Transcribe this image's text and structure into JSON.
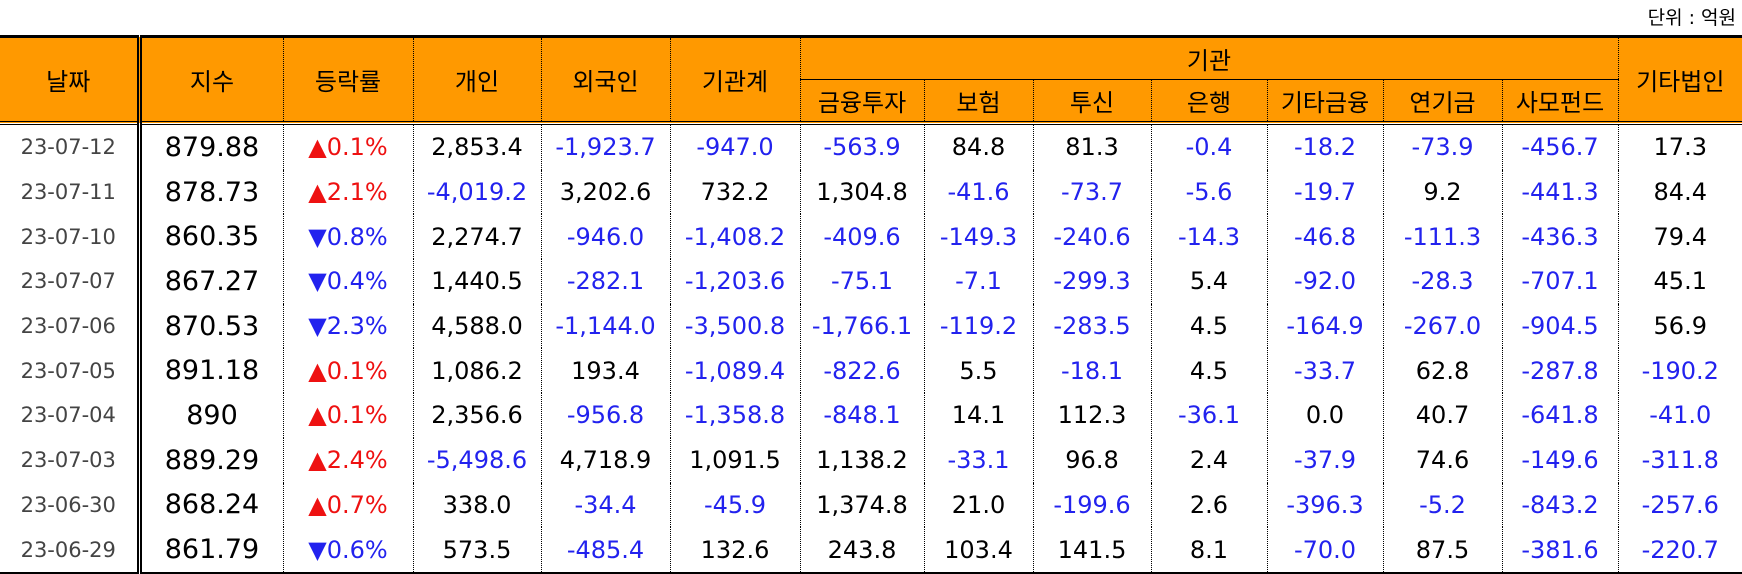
{
  "header": {
    "unit": "단위 : 억원",
    "columns": [
      "날짜",
      "지수",
      "등락률",
      "개인",
      "외국인",
      "기관계"
    ],
    "group": "기관",
    "subcolumns": [
      "금융투자",
      "보험",
      "투신",
      "은행",
      "기타금융",
      "연기금",
      "사모펀드"
    ],
    "last": "기타법인"
  },
  "table": {
    "rows": [
      [
        "23-07-12",
        "879.88",
        "▲0.1%",
        "2,853.4",
        "-1,923.7",
        "-947.0",
        "-563.9",
        "84.8",
        "81.3",
        "-0.4",
        "-18.2",
        "-73.9",
        "-456.7",
        "17.3"
      ],
      [
        "23-07-11",
        "878.73",
        "▲2.1%",
        "-4,019.2",
        "3,202.6",
        "732.2",
        "1,304.8",
        "-41.6",
        "-73.7",
        "-5.6",
        "-19.7",
        "9.2",
        "-441.3",
        "84.4"
      ],
      [
        "23-07-10",
        "860.35",
        "▼0.8%",
        "2,274.7",
        "-946.0",
        "-1,408.2",
        "-409.6",
        "-149.3",
        "-240.6",
        "-14.3",
        "-46.8",
        "-111.3",
        "-436.3",
        "79.4"
      ],
      [
        "23-07-07",
        "867.27",
        "▼0.4%",
        "1,440.5",
        "-282.1",
        "-1,203.6",
        "-75.1",
        "-7.1",
        "-299.3",
        "5.4",
        "-92.0",
        "-28.3",
        "-707.1",
        "45.1"
      ],
      [
        "23-07-06",
        "870.53",
        "▼2.3%",
        "4,588.0",
        "-1,144.0",
        "-3,500.8",
        "-1,766.1",
        "-119.2",
        "-283.5",
        "4.5",
        "-164.9",
        "-267.0",
        "-904.5",
        "56.9"
      ],
      [
        "23-07-05",
        "891.18",
        "▲0.1%",
        "1,086.2",
        "193.4",
        "-1,089.4",
        "-822.6",
        "5.5",
        "-18.1",
        "4.5",
        "-33.7",
        "62.8",
        "-287.8",
        "-190.2"
      ],
      [
        "23-07-04",
        "890",
        "▲0.1%",
        "2,356.6",
        "-956.8",
        "-1,358.8",
        "-848.1",
        "14.1",
        "112.3",
        "-36.1",
        "0.0",
        "40.7",
        "-641.8",
        "-41.0"
      ],
      [
        "23-07-03",
        "889.29",
        "▲2.4%",
        "-5,498.6",
        "4,718.9",
        "1,091.5",
        "1,138.2",
        "-33.1",
        "96.8",
        "2.4",
        "-37.9",
        "74.6",
        "-149.6",
        "-311.8"
      ],
      [
        "23-06-30",
        "868.24",
        "▲0.7%",
        "338.0",
        "-34.4",
        "-45.9",
        "1,374.8",
        "21.0",
        "-199.6",
        "2.6",
        "-396.3",
        "-5.2",
        "-843.2",
        "-257.6"
      ],
      [
        "23-06-29",
        "861.79",
        "▼0.6%",
        "573.5",
        "-485.4",
        "132.6",
        "243.8",
        "103.4",
        "141.5",
        "8.1",
        "-70.0",
        "87.5",
        "-381.6",
        "-220.7"
      ]
    ]
  }
}
